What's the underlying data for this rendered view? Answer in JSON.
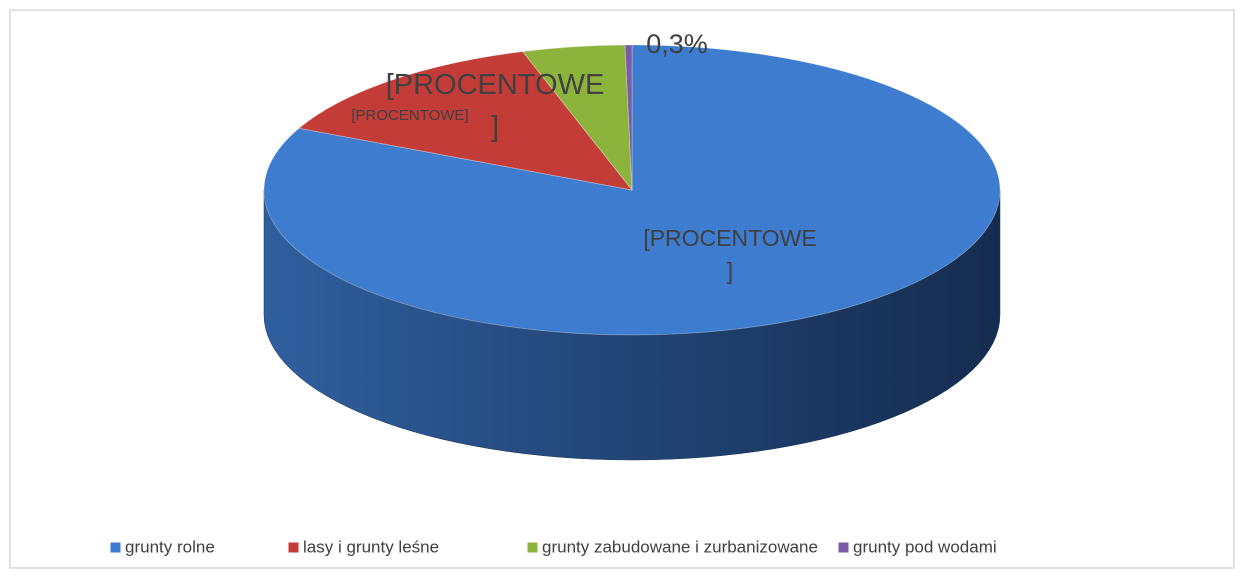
{
  "chart_data": {
    "type": "pie3d",
    "categories": [
      "grunty rolne",
      "lasy i  grunty leśne",
      "grunty zabudowane i zurbanizowane",
      "grunty pod wodami"
    ],
    "values": [
      82,
      13.2,
      4.5,
      0.3
    ],
    "value_labels": [
      "[PROCENTOWE\n]",
      "[PROCENTOWE]",
      "[PROCENTOWE\n]",
      "0,3%"
    ],
    "colors": [
      "#3d7ccf",
      "#c33c38",
      "#8cb43d",
      "#7b5aa8"
    ],
    "legend": "bottom"
  }
}
